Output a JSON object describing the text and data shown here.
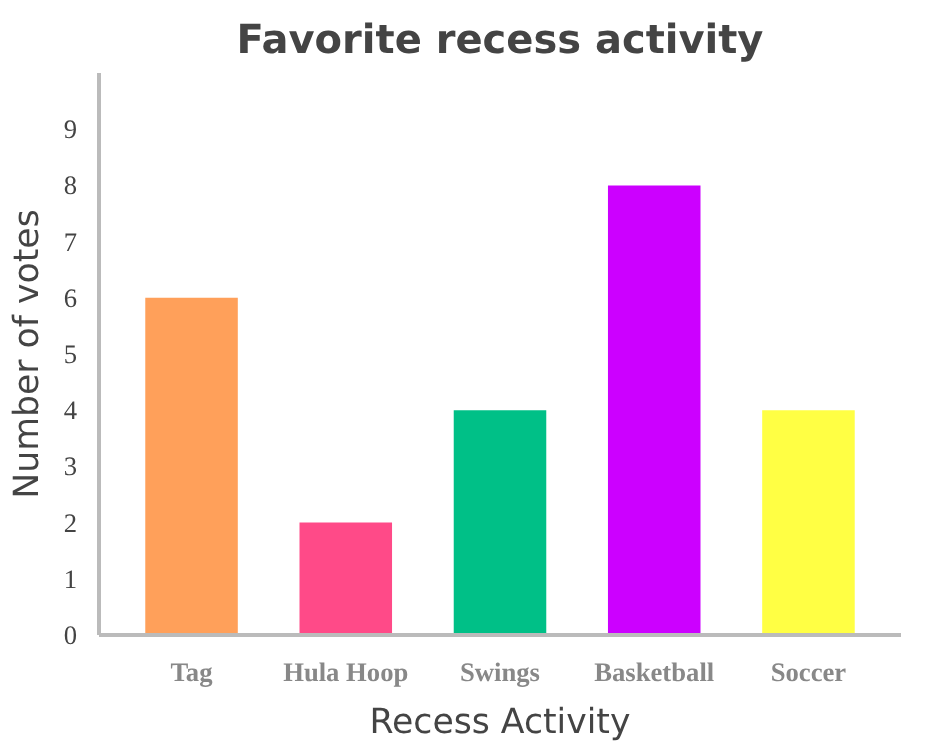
{
  "chart_data": {
    "type": "bar",
    "title": "Favorite recess activity",
    "xlabel": "Recess Activity",
    "ylabel": "Number of votes",
    "categories": [
      "Tag",
      "Hula Hoop",
      "Swings",
      "Basketball",
      "Soccer"
    ],
    "values": [
      6,
      2,
      4,
      8,
      4
    ],
    "colors": [
      "#ffa05a",
      "#ff4a88",
      "#00c087",
      "#cc00ff",
      "#ffff44"
    ],
    "ylim": [
      0,
      10
    ],
    "yticks": [
      0,
      1,
      2,
      3,
      4,
      5,
      6,
      7,
      8,
      9
    ],
    "grid": false
  }
}
